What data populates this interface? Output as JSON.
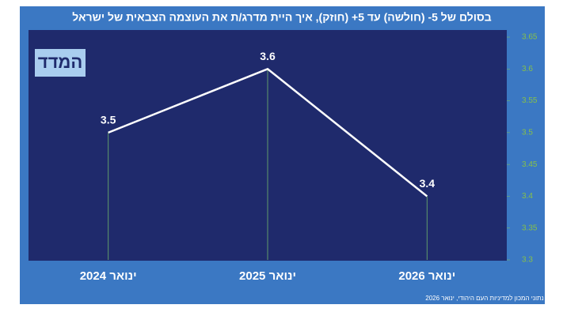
{
  "chart_data": {
    "type": "line",
    "title": "בסולם של 5- (חולשה) עד 5+ (חוזק), איך היית מדרג/ת את העוצמה הצבאית של ישראל",
    "logo": "המדד",
    "categories": [
      "ינואר 2024",
      "ינואר 2025",
      "ינואר 2026"
    ],
    "values": [
      3.5,
      3.6,
      3.4
    ],
    "color": "#ffffff",
    "ylim": [
      3.3,
      3.65
    ],
    "yticks": [
      3.3,
      3.35,
      3.4,
      3.45,
      3.5,
      3.55,
      3.6,
      3.65
    ],
    "footnote": "נתוני המכון למדיניות העם היהודי, ינואר 2026"
  }
}
